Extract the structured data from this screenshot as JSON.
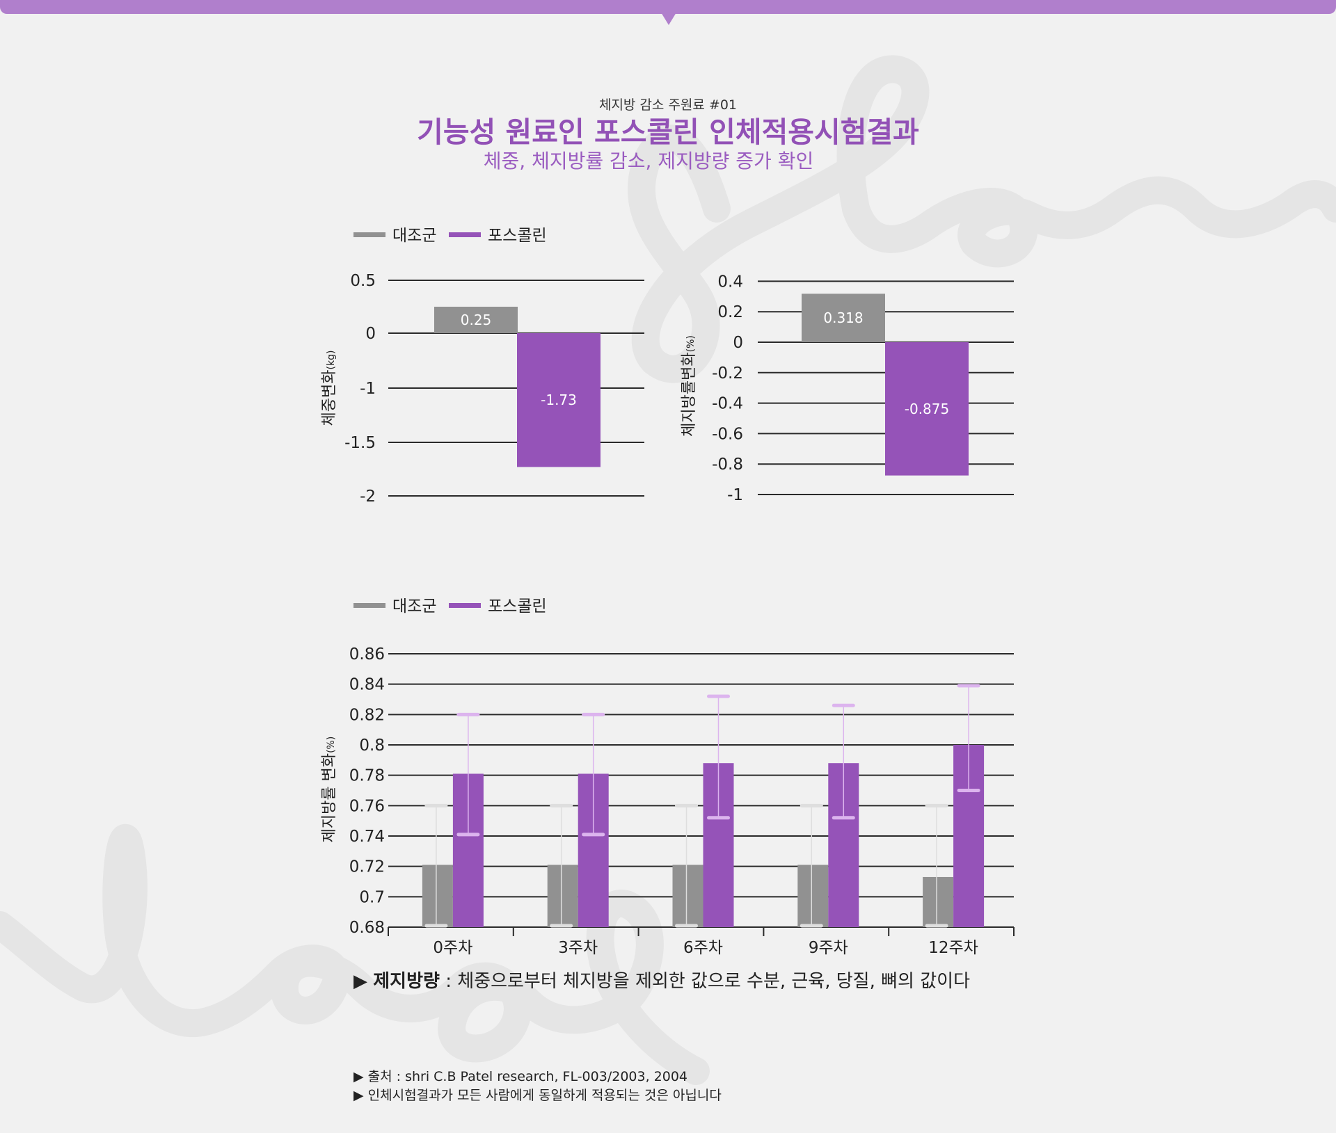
{
  "header": {
    "kicker": "체지방 감소 주원료 #01",
    "title": "기능성 원료인 포스콜린 인체적용시험결과",
    "subtitle": "체중, 체지방률 감소, 제지방량 증가 확인"
  },
  "colors": {
    "control": "#919191",
    "forskolin": "#9553b8",
    "accent": "#b07fcc",
    "control_err": "#dedede",
    "forskolin_err": "#dcb4ee"
  },
  "legend": {
    "control": "대조군",
    "forskolin": "포스콜린"
  },
  "chart_data": [
    {
      "type": "bar",
      "categories": [
        "대조군",
        "포스콜린"
      ],
      "values": [
        0.25,
        -1.73
      ],
      "value_labels": [
        "0.25",
        "-1.73"
      ],
      "ylabel": "체중변화",
      "yunit": "(kg)",
      "yticks": [
        "0.5",
        "0",
        "-1",
        "-1.5",
        "-2"
      ],
      "grid": true,
      "legend": "top-left"
    },
    {
      "type": "bar",
      "categories": [
        "대조군",
        "포스콜린"
      ],
      "values": [
        0.318,
        -0.875
      ],
      "value_labels": [
        "0.318",
        "-0.875"
      ],
      "ylabel": "체지방률변화",
      "yunit": "(%)",
      "yticks": [
        "0.4",
        "0.2",
        "0",
        "-0.2",
        "-0.4",
        "-0.6",
        "-0.8",
        "-1"
      ],
      "ylim": [
        -1,
        0.4
      ],
      "grid": true
    },
    {
      "type": "bar",
      "categories": [
        "0주차",
        "3주차",
        "6주차",
        "9주차",
        "12주차"
      ],
      "series": [
        {
          "name": "대조군",
          "values": [
            0.721,
            0.721,
            0.721,
            0.721,
            0.713
          ],
          "err_low": [
            0.68,
            0.68,
            0.68,
            0.68,
            0.68
          ],
          "err_high": [
            0.76,
            0.76,
            0.76,
            0.76,
            0.76
          ]
        },
        {
          "name": "포스콜린",
          "values": [
            0.781,
            0.781,
            0.788,
            0.788,
            0.8
          ],
          "err_low": [
            0.741,
            0.741,
            0.752,
            0.752,
            0.77
          ],
          "err_high": [
            0.82,
            0.82,
            0.832,
            0.826,
            0.839
          ]
        }
      ],
      "ylabel": "제지방률 변화",
      "yunit": "(%)",
      "yticks": [
        "0.86",
        "0.84",
        "0.82",
        "0.8",
        "0.78",
        "0.76",
        "0.74",
        "0.72",
        "0.7",
        "0.68"
      ],
      "ylim": [
        0.68,
        0.86
      ],
      "grid": true,
      "legend": "top-left"
    }
  ],
  "note": {
    "term": "제지방량",
    "text": " : 체중으로부터 체지방을 제외한 값으로 수분, 근육, 당질, 뼈의 값이다"
  },
  "footnotes": [
    "▶ 출처 : shri C.B Patel research, FL-003/2003, 2004",
    "▶ 인체시험결과가 모든 사람에게 동일하게 적용되는 것은 아닙니다"
  ]
}
